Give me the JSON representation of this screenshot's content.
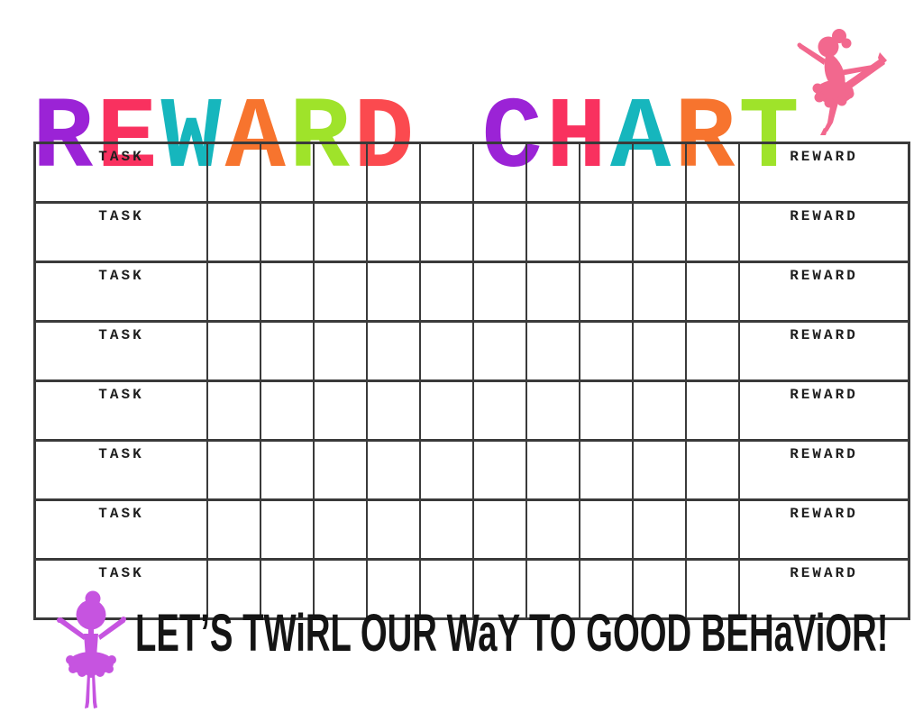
{
  "title": {
    "text": "REWARD CHART",
    "letters": [
      {
        "char": "R",
        "color": "#9b23d6"
      },
      {
        "char": "E",
        "color": "#f9315f"
      },
      {
        "char": "W",
        "color": "#16b6bd"
      },
      {
        "char": "A",
        "color": "#f7742e"
      },
      {
        "char": "R",
        "color": "#9fe32a"
      },
      {
        "char": "D",
        "color": "#fb4a4f"
      },
      {
        "char": " ",
        "color": ""
      },
      {
        "char": "C",
        "color": "#9b23d6"
      },
      {
        "char": "H",
        "color": "#f9315f"
      },
      {
        "char": "A",
        "color": "#16b6bd"
      },
      {
        "char": "R",
        "color": "#f7742e"
      },
      {
        "char": "T",
        "color": "#9fe32a"
      }
    ]
  },
  "table": {
    "border_color": "#3a3a3a",
    "blank_columns": 10,
    "rows": [
      {
        "task": "TASK",
        "reward": "REWARD"
      },
      {
        "task": "TASK",
        "reward": "REWARD"
      },
      {
        "task": "TASK",
        "reward": "REWARD"
      },
      {
        "task": "TASK",
        "reward": "REWARD"
      },
      {
        "task": "TASK",
        "reward": "REWARD"
      },
      {
        "task": "TASK",
        "reward": "REWARD"
      },
      {
        "task": "TASK",
        "reward": "REWARD"
      },
      {
        "task": "TASK",
        "reward": "REWARD"
      }
    ]
  },
  "footer": {
    "tagline": "LET’S TWiRL OUR WaY TO GOOD BEHaViOR!",
    "text_color": "#141414"
  },
  "icons": {
    "top_ballerina": {
      "name": "ballerina-arabesque",
      "color": "#f2688e"
    },
    "bottom_ballerina": {
      "name": "ballerina-standing",
      "color": "#c654e0"
    }
  }
}
